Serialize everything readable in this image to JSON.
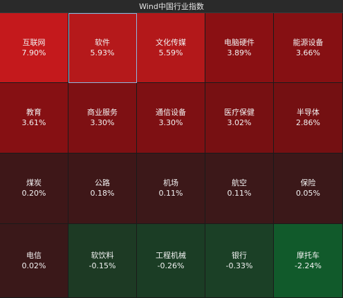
{
  "window": {
    "title": "Wind中国行业指数"
  },
  "tiles": [
    {
      "name": "互联网",
      "change": "7.90%",
      "color": "#c4191c"
    },
    {
      "name": "软件",
      "change": "5.93%",
      "color": "#b5191b"
    },
    {
      "name": "文化传媒",
      "change": "5.59%",
      "color": "#b3181a"
    },
    {
      "name": "电脑硬件",
      "change": "3.89%",
      "color": "#8a1013"
    },
    {
      "name": "能源设备",
      "change": "3.66%",
      "color": "#861013"
    },
    {
      "name": "教育",
      "change": "3.61%",
      "color": "#861013"
    },
    {
      "name": "商业服务",
      "change": "3.30%",
      "color": "#7e1013"
    },
    {
      "name": "通信设备",
      "change": "3.30%",
      "color": "#7e1013"
    },
    {
      "name": "医疗保健",
      "change": "3.02%",
      "color": "#771012"
    },
    {
      "name": "半导体",
      "change": "2.86%",
      "color": "#741012"
    },
    {
      "name": "煤炭",
      "change": "0.20%",
      "color": "#3e1718"
    },
    {
      "name": "公路",
      "change": "0.18%",
      "color": "#3e1718"
    },
    {
      "name": "机场",
      "change": "0.11%",
      "color": "#3c1819"
    },
    {
      "name": "航空",
      "change": "0.11%",
      "color": "#3c1819"
    },
    {
      "name": "保险",
      "change": "0.05%",
      "color": "#3b1819"
    },
    {
      "name": "电信",
      "change": "0.02%",
      "color": "#3a1819"
    },
    {
      "name": "软饮料",
      "change": "-0.15%",
      "color": "#1d3a24"
    },
    {
      "name": "工程机械",
      "change": "-0.26%",
      "color": "#1b3d25"
    },
    {
      "name": "银行",
      "change": "-0.33%",
      "color": "#1b4026"
    },
    {
      "name": "摩托车",
      "change": "-2.24%",
      "color": "#115a2b"
    }
  ],
  "selected_index": 1
}
